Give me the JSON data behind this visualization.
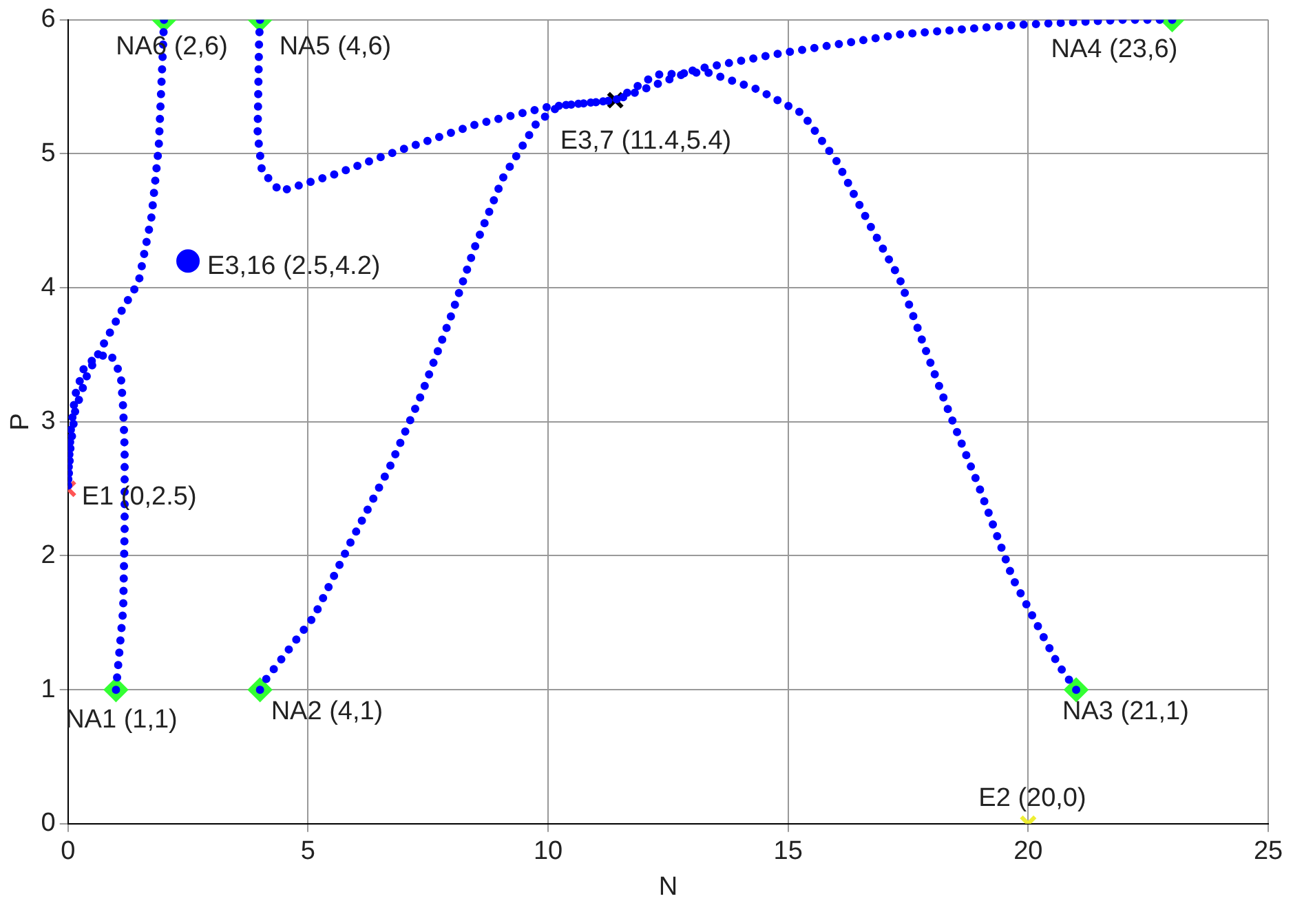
{
  "chart_data": {
    "type": "line",
    "xlabel": "N",
    "ylabel": "P",
    "xlim": [
      0,
      25
    ],
    "ylim": [
      0,
      6
    ],
    "xticks": [
      0,
      5,
      10,
      15,
      20,
      25
    ],
    "yticks": [
      0,
      1,
      2,
      3,
      4,
      5,
      6
    ],
    "grid": true,
    "legend": false,
    "series": [
      {
        "line_style": "dotted",
        "marker": "none",
        "color": "#0000ff",
        "x": [
          1,
          1.15,
          1.18,
          1.18,
          1.15,
          1.1,
          0.88,
          0.6,
          0.35,
          0.15,
          0.06,
          0.02,
          0
        ],
        "values": [
          1,
          1.6,
          2.2,
          2.8,
          3.1,
          3.35,
          3.51,
          3.48,
          3.42,
          3.2,
          2.94,
          2.7,
          2.5
        ]
      },
      {
        "line_style": "dotted",
        "marker": "none",
        "color": "#0000ff",
        "x": [
          2,
          1.98,
          1.89,
          1.74,
          1.47,
          1.15,
          0.88,
          0.41,
          0.15,
          0.05,
          0
        ],
        "values": [
          6,
          5.8,
          5.05,
          4.53,
          4.04,
          3.85,
          3.67,
          3.36,
          3.08,
          2.8,
          2.5
        ]
      },
      {
        "line_style": "dotted",
        "marker": "none",
        "color": "#0000ff",
        "x": [
          4,
          3.98,
          3.95,
          4.04,
          4.42,
          5.5,
          6.7,
          8.5,
          10,
          11.4
        ],
        "values": [
          6,
          5.84,
          5.15,
          4.87,
          4.72,
          4.84,
          5,
          5.22,
          5.35,
          5.4
        ]
      },
      {
        "line_style": "dotted",
        "marker": "none",
        "color": "#0000ff",
        "x": [
          23,
          21.98,
          19.68,
          17.3,
          15.9,
          14.84,
          13.07,
          11.4
        ],
        "values": [
          6,
          6,
          5.96,
          5.89,
          5.81,
          5.75,
          5.63,
          5.4
        ]
      },
      {
        "line_style": "dotted",
        "marker": "none",
        "color": "#0000ff",
        "x": [
          21,
          20.62,
          19.68,
          18.97,
          18.32,
          17.85,
          17.32,
          16.73,
          16.02,
          15.3,
          14.37,
          13.3,
          12.24,
          11.4
        ],
        "values": [
          1,
          1.19,
          1.83,
          2.52,
          3.1,
          3.55,
          4.07,
          4.45,
          4.94,
          5.3,
          5.48,
          5.61,
          5.59,
          5.4
        ]
      },
      {
        "line_style": "dotted",
        "marker": "none",
        "color": "#0000ff",
        "x": [
          4,
          4.13,
          5.13,
          5.9,
          6.7,
          7.37,
          7.96,
          8.47,
          9.06,
          9.76,
          10.24,
          11.4
        ],
        "values": [
          1,
          1.08,
          1.55,
          2.11,
          2.66,
          3.21,
          3.77,
          4.3,
          4.82,
          5.23,
          5.36,
          5.4
        ]
      },
      {
        "type": "scatter",
        "marker": "diamond",
        "colors": [
          "#33ff33",
          "#33ff33",
          "#33ff33",
          "#33ff33",
          "#33ff33",
          "#33ff33"
        ],
        "x": [
          1,
          4,
          21,
          23,
          4,
          2
        ],
        "values": [
          1,
          1,
          1,
          6,
          6,
          6
        ]
      },
      {
        "type": "scatter",
        "marker": "cross",
        "colors": [
          "#ff5555",
          "#eeee33",
          "#000000"
        ],
        "x": [
          0,
          20,
          11.4
        ],
        "values": [
          2.5,
          0,
          5.4
        ]
      },
      {
        "type": "scatter",
        "marker": "circle",
        "color": "#0000ff",
        "x": [
          2.5
        ],
        "values": [
          4.2
        ]
      }
    ],
    "annotations": [
      {
        "text": "NA1 (1,1)",
        "x": 1,
        "y": 1
      },
      {
        "text": "NA2 (4,1)",
        "x": 4,
        "y": 1
      },
      {
        "text": "NA3 (21,1)",
        "x": 21,
        "y": 1
      },
      {
        "text": "NA4 (23,6)",
        "x": 23,
        "y": 6
      },
      {
        "text": "NA5 (4,6)",
        "x": 4,
        "y": 6
      },
      {
        "text": "NA6 (2,6)",
        "x": 2,
        "y": 6
      },
      {
        "text": "E1 (0,2.5)",
        "x": 0,
        "y": 2.5
      },
      {
        "text": "E2 (20,0)",
        "x": 20,
        "y": 0
      },
      {
        "text": "E3,7 (11.4,5.4)",
        "x": 11.4,
        "y": 5.4
      },
      {
        "text": "E3,16 (2.5,4.2)",
        "x": 2.5,
        "y": 4.2
      }
    ]
  }
}
